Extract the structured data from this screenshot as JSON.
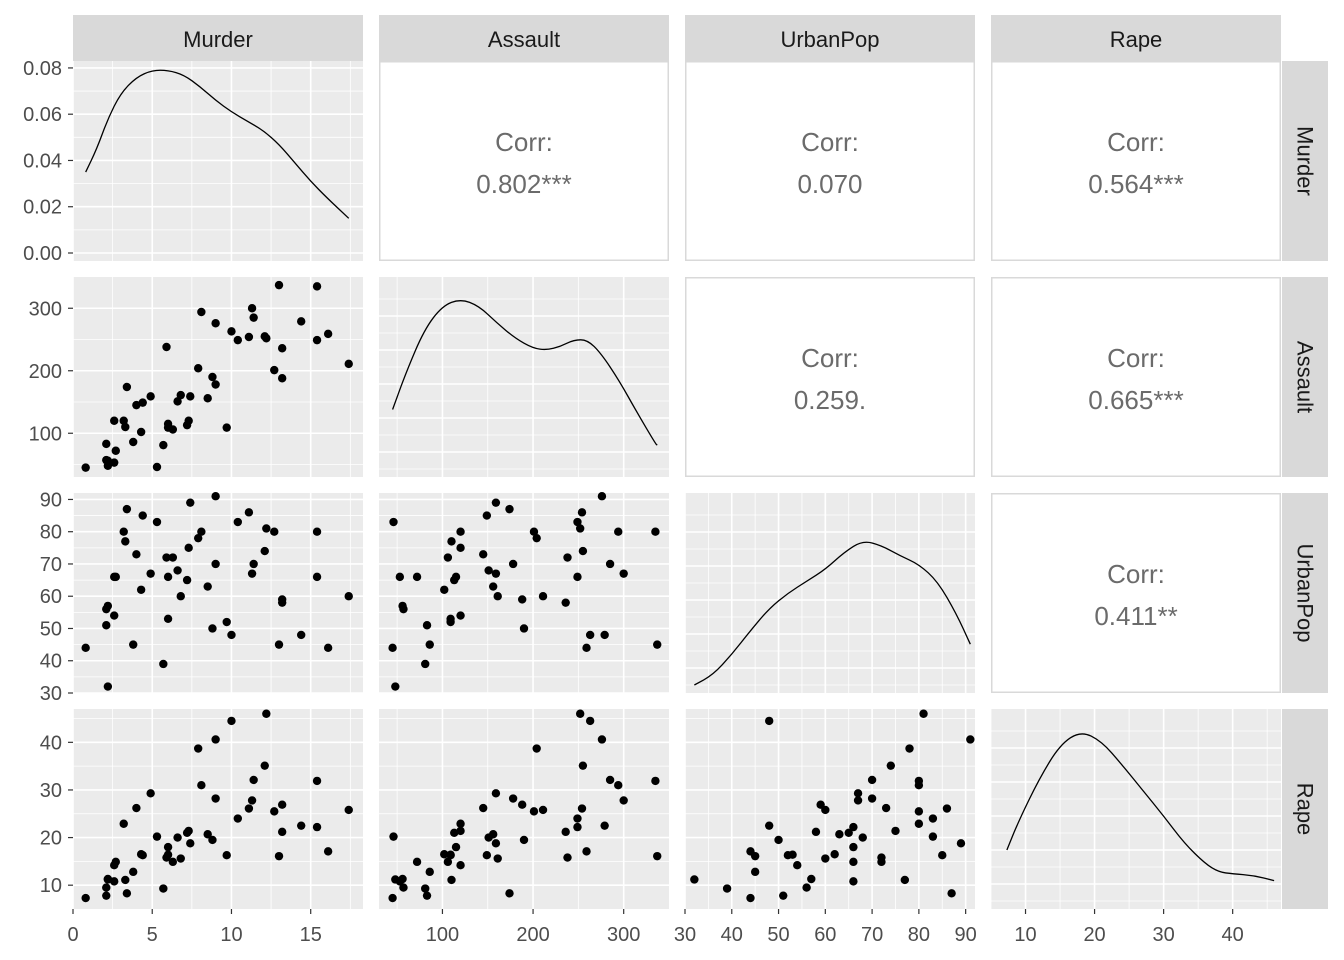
{
  "chart_data": {
    "type": "scatter",
    "kind": "scatterplot-matrix",
    "variables": [
      "Murder",
      "Assault",
      "UrbanPop",
      "Rape"
    ],
    "diag_ticks": [
      "0.00",
      "0.02",
      "0.04",
      "0.06",
      "0.08"
    ],
    "corr_label": "Corr:",
    "correlations": [
      {
        "row": 0,
        "col": 1,
        "value": "0.802***"
      },
      {
        "row": 0,
        "col": 2,
        "value": "0.070"
      },
      {
        "row": 0,
        "col": 3,
        "value": "0.564***"
      },
      {
        "row": 1,
        "col": 2,
        "value": "0.259."
      },
      {
        "row": 1,
        "col": 3,
        "value": "0.665***"
      },
      {
        "row": 2,
        "col": 3,
        "value": "0.411**"
      }
    ],
    "axes": {
      "Murder": {
        "range": [
          0,
          18.3
        ],
        "ticks": [
          0,
          5,
          10,
          15
        ]
      },
      "Assault": {
        "range": [
          30,
          350
        ],
        "ticks": [
          100,
          200,
          300
        ]
      },
      "UrbanPop": {
        "range": [
          30,
          92
        ],
        "ticks": [
          30,
          40,
          50,
          60,
          70,
          80,
          90
        ]
      },
      "Rape": {
        "range": [
          5,
          47
        ],
        "ticks": [
          10,
          20,
          30,
          40
        ]
      }
    },
    "densities": {
      "Murder": [
        [
          0.8,
          0.035
        ],
        [
          1.5,
          0.045
        ],
        [
          2.2,
          0.058
        ],
        [
          3.0,
          0.069
        ],
        [
          4.0,
          0.076
        ],
        [
          5.0,
          0.079
        ],
        [
          6.0,
          0.079
        ],
        [
          7.0,
          0.077
        ],
        [
          8.0,
          0.072
        ],
        [
          9.0,
          0.066
        ],
        [
          10.0,
          0.061
        ],
        [
          11.0,
          0.057
        ],
        [
          12.0,
          0.053
        ],
        [
          13.0,
          0.047
        ],
        [
          14.0,
          0.039
        ],
        [
          15.0,
          0.031
        ],
        [
          16.0,
          0.024
        ],
        [
          17.4,
          0.015
        ]
      ],
      "Assault": [
        [
          45,
          0.35
        ],
        [
          60,
          0.57
        ],
        [
          80,
          0.82
        ],
        [
          100,
          0.96
        ],
        [
          120,
          1.0
        ],
        [
          140,
          0.96
        ],
        [
          160,
          0.86
        ],
        [
          180,
          0.77
        ],
        [
          200,
          0.71
        ],
        [
          215,
          0.7
        ],
        [
          230,
          0.72
        ],
        [
          245,
          0.76
        ],
        [
          260,
          0.76
        ],
        [
          275,
          0.68
        ],
        [
          295,
          0.52
        ],
        [
          315,
          0.33
        ],
        [
          335,
          0.15
        ],
        [
          337,
          0.14
        ]
      ],
      "UrbanPop": [
        [
          32,
          0.0
        ],
        [
          36,
          0.06
        ],
        [
          40,
          0.18
        ],
        [
          44,
          0.32
        ],
        [
          48,
          0.45
        ],
        [
          52,
          0.54
        ],
        [
          56,
          0.61
        ],
        [
          60,
          0.68
        ],
        [
          64,
          0.78
        ],
        [
          68,
          0.85
        ],
        [
          72,
          0.82
        ],
        [
          76,
          0.76
        ],
        [
          80,
          0.71
        ],
        [
          84,
          0.61
        ],
        [
          88,
          0.42
        ],
        [
          91,
          0.24
        ]
      ],
      "Rape": [
        [
          7.3,
          0.3
        ],
        [
          9,
          0.47
        ],
        [
          12,
          0.72
        ],
        [
          15,
          0.92
        ],
        [
          18,
          1.0
        ],
        [
          21,
          0.94
        ],
        [
          24,
          0.8
        ],
        [
          27,
          0.65
        ],
        [
          30,
          0.5
        ],
        [
          33,
          0.34
        ],
        [
          36,
          0.22
        ],
        [
          38,
          0.17
        ],
        [
          40,
          0.16
        ],
        [
          43,
          0.15
        ],
        [
          46,
          0.12
        ]
      ]
    },
    "observations": {
      "Murder": [
        13.2,
        10.0,
        8.1,
        8.8,
        9.0,
        7.9,
        3.3,
        5.9,
        15.4,
        17.4,
        5.3,
        2.6,
        10.4,
        7.2,
        2.2,
        6.0,
        9.7,
        15.4,
        2.1,
        11.3,
        4.4,
        12.1,
        2.7,
        16.1,
        9.0,
        6.0,
        4.3,
        12.2,
        2.1,
        7.4,
        11.4,
        11.1,
        13.0,
        0.8,
        7.3,
        6.6,
        4.9,
        6.3,
        3.4,
        14.4,
        3.8,
        13.2,
        12.7,
        3.2,
        2.2,
        8.5,
        4.0,
        5.7,
        2.6,
        6.8
      ],
      "Assault": [
        236,
        263,
        294,
        190,
        276,
        204,
        110,
        238,
        335,
        211,
        46,
        120,
        249,
        113,
        56,
        115,
        109,
        249,
        83,
        300,
        149,
        255,
        72,
        259,
        178,
        109,
        102,
        252,
        57,
        159,
        285,
        254,
        337,
        45,
        120,
        151,
        159,
        106,
        174,
        279,
        86,
        188,
        201,
        120,
        48,
        156,
        145,
        81,
        53,
        161
      ],
      "UrbanPop": [
        58,
        48,
        80,
        50,
        91,
        78,
        77,
        72,
        80,
        60,
        83,
        54,
        83,
        65,
        57,
        66,
        52,
        66,
        51,
        67,
        85,
        74,
        66,
        44,
        70,
        53,
        62,
        81,
        56,
        89,
        70,
        86,
        45,
        44,
        75,
        68,
        67,
        72,
        87,
        48,
        45,
        59,
        80,
        80,
        32,
        63,
        73,
        39,
        66,
        60
      ],
      "Rape": [
        21.2,
        44.5,
        31.0,
        19.5,
        40.6,
        38.7,
        11.1,
        15.8,
        31.9,
        25.8,
        20.2,
        14.2,
        24.0,
        21.0,
        11.3,
        18.0,
        16.3,
        22.2,
        7.8,
        27.8,
        16.3,
        35.1,
        14.9,
        17.1,
        28.2,
        16.4,
        16.5,
        46.0,
        9.5,
        18.8,
        32.1,
        26.1,
        16.1,
        7.3,
        21.4,
        20.0,
        29.3,
        14.9,
        8.3,
        22.5,
        12.8,
        26.9,
        25.5,
        22.9,
        11.2,
        20.7,
        26.2,
        9.3,
        10.8,
        15.6
      ]
    }
  }
}
